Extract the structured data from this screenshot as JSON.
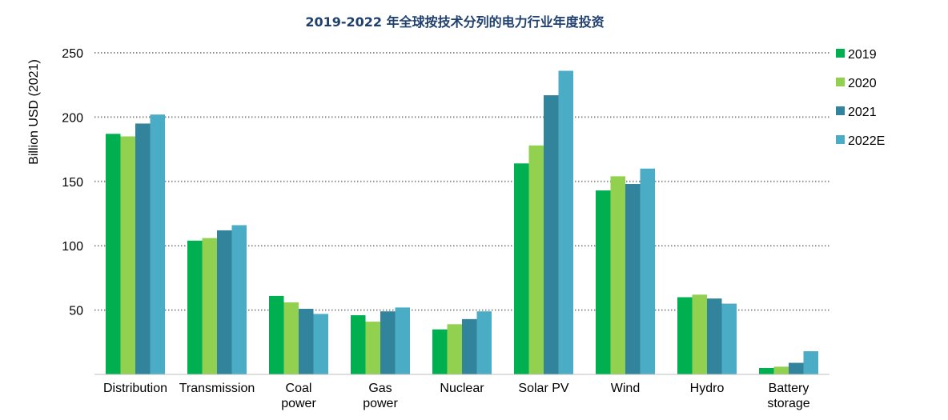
{
  "chart_data": {
    "type": "bar",
    "title": "2019-2022 年全球按技术分列的电力行业年度投资",
    "ylabel": "Billion USD (2021)",
    "xlabel": "",
    "ylim": [
      0,
      250
    ],
    "yticks": [
      50,
      100,
      150,
      200,
      250
    ],
    "grid": true,
    "legend_position": "right",
    "categories": [
      [
        "Distribution"
      ],
      [
        "Transmission"
      ],
      [
        "Coal",
        "power"
      ],
      [
        "Gas",
        "power"
      ],
      [
        "Nuclear"
      ],
      [
        "Solar PV"
      ],
      [
        "Wind"
      ],
      [
        "Hydro"
      ],
      [
        "Battery",
        "storage"
      ]
    ],
    "series": [
      {
        "name": "2019",
        "color": "#00b050",
        "values": [
          187,
          104,
          61,
          46,
          35,
          164,
          143,
          60,
          5
        ]
      },
      {
        "name": "2020",
        "color": "#92d050",
        "values": [
          185,
          106,
          56,
          41,
          39,
          178,
          154,
          62,
          6
        ]
      },
      {
        "name": "2021",
        "color": "#31849b",
        "values": [
          195,
          112,
          51,
          49,
          43,
          217,
          148,
          59,
          9
        ]
      },
      {
        "name": "2022E",
        "color": "#4bacc6",
        "values": [
          202,
          116,
          47,
          52,
          49,
          236,
          160,
          55,
          18
        ]
      }
    ]
  }
}
